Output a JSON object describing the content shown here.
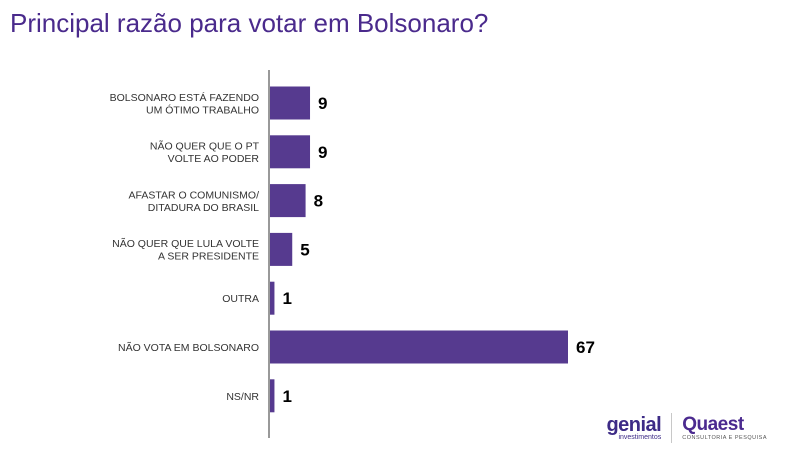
{
  "chart_data": {
    "type": "bar",
    "orientation": "horizontal",
    "title": "Principal razão para votar em Bolsonaro?",
    "categories": [
      [
        "BOLSONARO ESTÁ FAZENDO",
        "UM ÓTIMO TRABALHO"
      ],
      [
        "NÃO QUER QUE O PT",
        "VOLTE AO PODER"
      ],
      [
        "AFASTAR O COMUNISMO/",
        "DITADURA DO BRASIL"
      ],
      [
        "NÃO QUER QUE LULA VOLTE",
        "A SER PRESIDENTE"
      ],
      [
        "OUTRA"
      ],
      [
        "NÃO VOTA EM BOLSONARO"
      ],
      [
        "NS/NR"
      ]
    ],
    "values": [
      9,
      9,
      8,
      5,
      1,
      67,
      1
    ],
    "xlim": [
      0,
      67
    ],
    "grid": false,
    "bar_color": "#563a8f"
  },
  "logos": {
    "genial_name": "genial",
    "genial_sub": "investimentos",
    "quaest_name": "Quaest",
    "quaest_sub": "CONSULTORIA E PESQUISA"
  }
}
